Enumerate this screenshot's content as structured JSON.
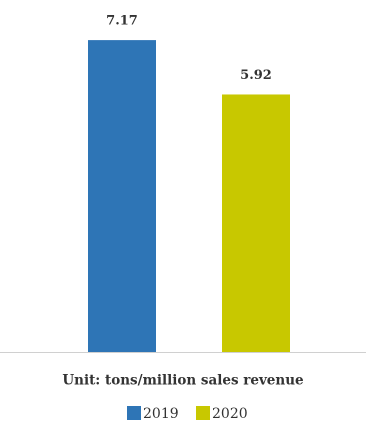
{
  "chart_data": {
    "type": "bar",
    "x_label": "Unit: tons/million sales revenue",
    "categories": [
      "2019",
      "2020"
    ],
    "values": [
      7.17,
      5.92
    ],
    "colors": [
      "#2e75b6",
      "#c8c800"
    ],
    "legend": true
  }
}
